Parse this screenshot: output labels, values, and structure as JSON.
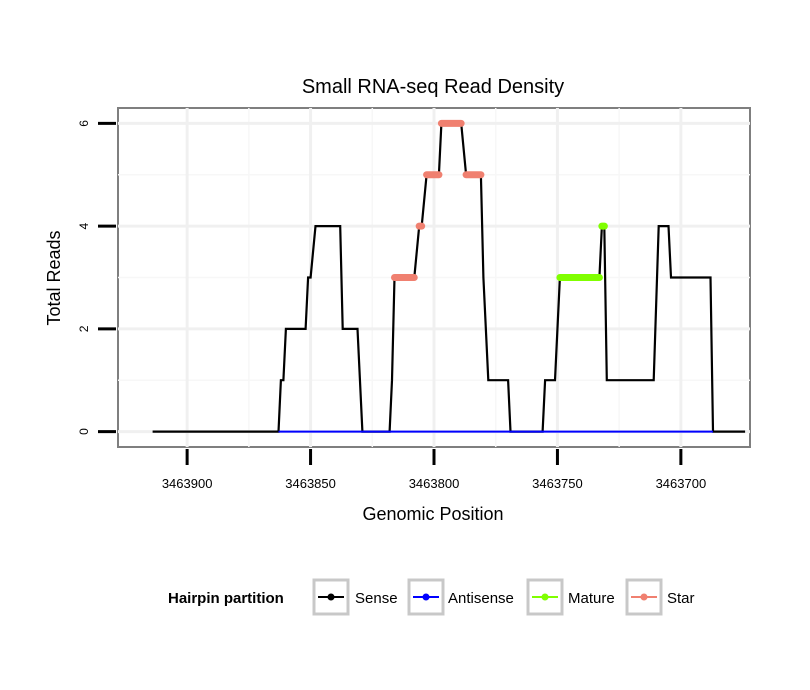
{
  "chart_data": {
    "type": "line",
    "title": "Small RNA-seq Read Density",
    "xlabel": "Genomic Position",
    "ylabel": "Total Reads",
    "x_reversed": true,
    "xlim": [
      3463928,
      3463672
    ],
    "ylim": [
      -0.3,
      6.3
    ],
    "x_ticks": [
      3463900,
      3463850,
      3463800,
      3463750,
      3463700
    ],
    "x_tick_labels": [
      "3463900",
      "3463850",
      "3463800",
      "3463750",
      "3463700"
    ],
    "y_ticks": [
      0,
      2,
      4,
      6
    ],
    "y_tick_labels": [
      "0",
      "2",
      "4",
      "6"
    ],
    "grid": true,
    "legend": {
      "title": "Hairpin partition",
      "position": "bottom",
      "entries": [
        "Sense",
        "Antisense",
        "Mature",
        "Star"
      ]
    },
    "series": [
      {
        "name": "Sense",
        "color": "#000000",
        "kind": "line",
        "points": [
          [
            3463914,
            0
          ],
          [
            3463863,
            0
          ],
          [
            3463862,
            1
          ],
          [
            3463861,
            1
          ],
          [
            3463860,
            2
          ],
          [
            3463852,
            2
          ],
          [
            3463851,
            3
          ],
          [
            3463850,
            3
          ],
          [
            3463848,
            4
          ],
          [
            3463838,
            4
          ],
          [
            3463837,
            2
          ],
          [
            3463831,
            2
          ],
          [
            3463829,
            0
          ],
          [
            3463818,
            0
          ],
          [
            3463817,
            1
          ],
          [
            3463816,
            3
          ],
          [
            3463808,
            3
          ],
          [
            3463806,
            4
          ],
          [
            3463805,
            4
          ],
          [
            3463803,
            5
          ],
          [
            3463798,
            5
          ],
          [
            3463797,
            6
          ],
          [
            3463789,
            6
          ],
          [
            3463787,
            5
          ],
          [
            3463781,
            5
          ],
          [
            3463780,
            3
          ],
          [
            3463778,
            1
          ],
          [
            3463776,
            1
          ],
          [
            3463774,
            1
          ],
          [
            3463770,
            1
          ],
          [
            3463769,
            0
          ],
          [
            3463756,
            0
          ],
          [
            3463755,
            1
          ],
          [
            3463751,
            1
          ],
          [
            3463749,
            3
          ],
          [
            3463733,
            3
          ],
          [
            3463732,
            4
          ],
          [
            3463731,
            4
          ],
          [
            3463730,
            1
          ],
          [
            3463711,
            1
          ],
          [
            3463709,
            4
          ],
          [
            3463705,
            4
          ],
          [
            3463704,
            3
          ],
          [
            3463688,
            3
          ],
          [
            3463687,
            0
          ],
          [
            3463674,
            0
          ]
        ]
      },
      {
        "name": "Antisense",
        "color": "#0000ff",
        "kind": "line",
        "points": [
          [
            3463863,
            0
          ],
          [
            3463687,
            0
          ]
        ]
      },
      {
        "name": "Mature",
        "color": "#80ff00",
        "kind": "dots",
        "segments": [
          [
            3463749,
            3463733,
            3
          ],
          [
            3463732,
            3463731,
            4
          ]
        ]
      },
      {
        "name": "Star",
        "color": "#f08070",
        "kind": "dots",
        "segments": [
          [
            3463816,
            3463808,
            3
          ],
          [
            3463806,
            3463805,
            4
          ],
          [
            3463803,
            3463798,
            5
          ],
          [
            3463797,
            3463789,
            6
          ],
          [
            3463787,
            3463781,
            5
          ]
        ]
      }
    ]
  }
}
